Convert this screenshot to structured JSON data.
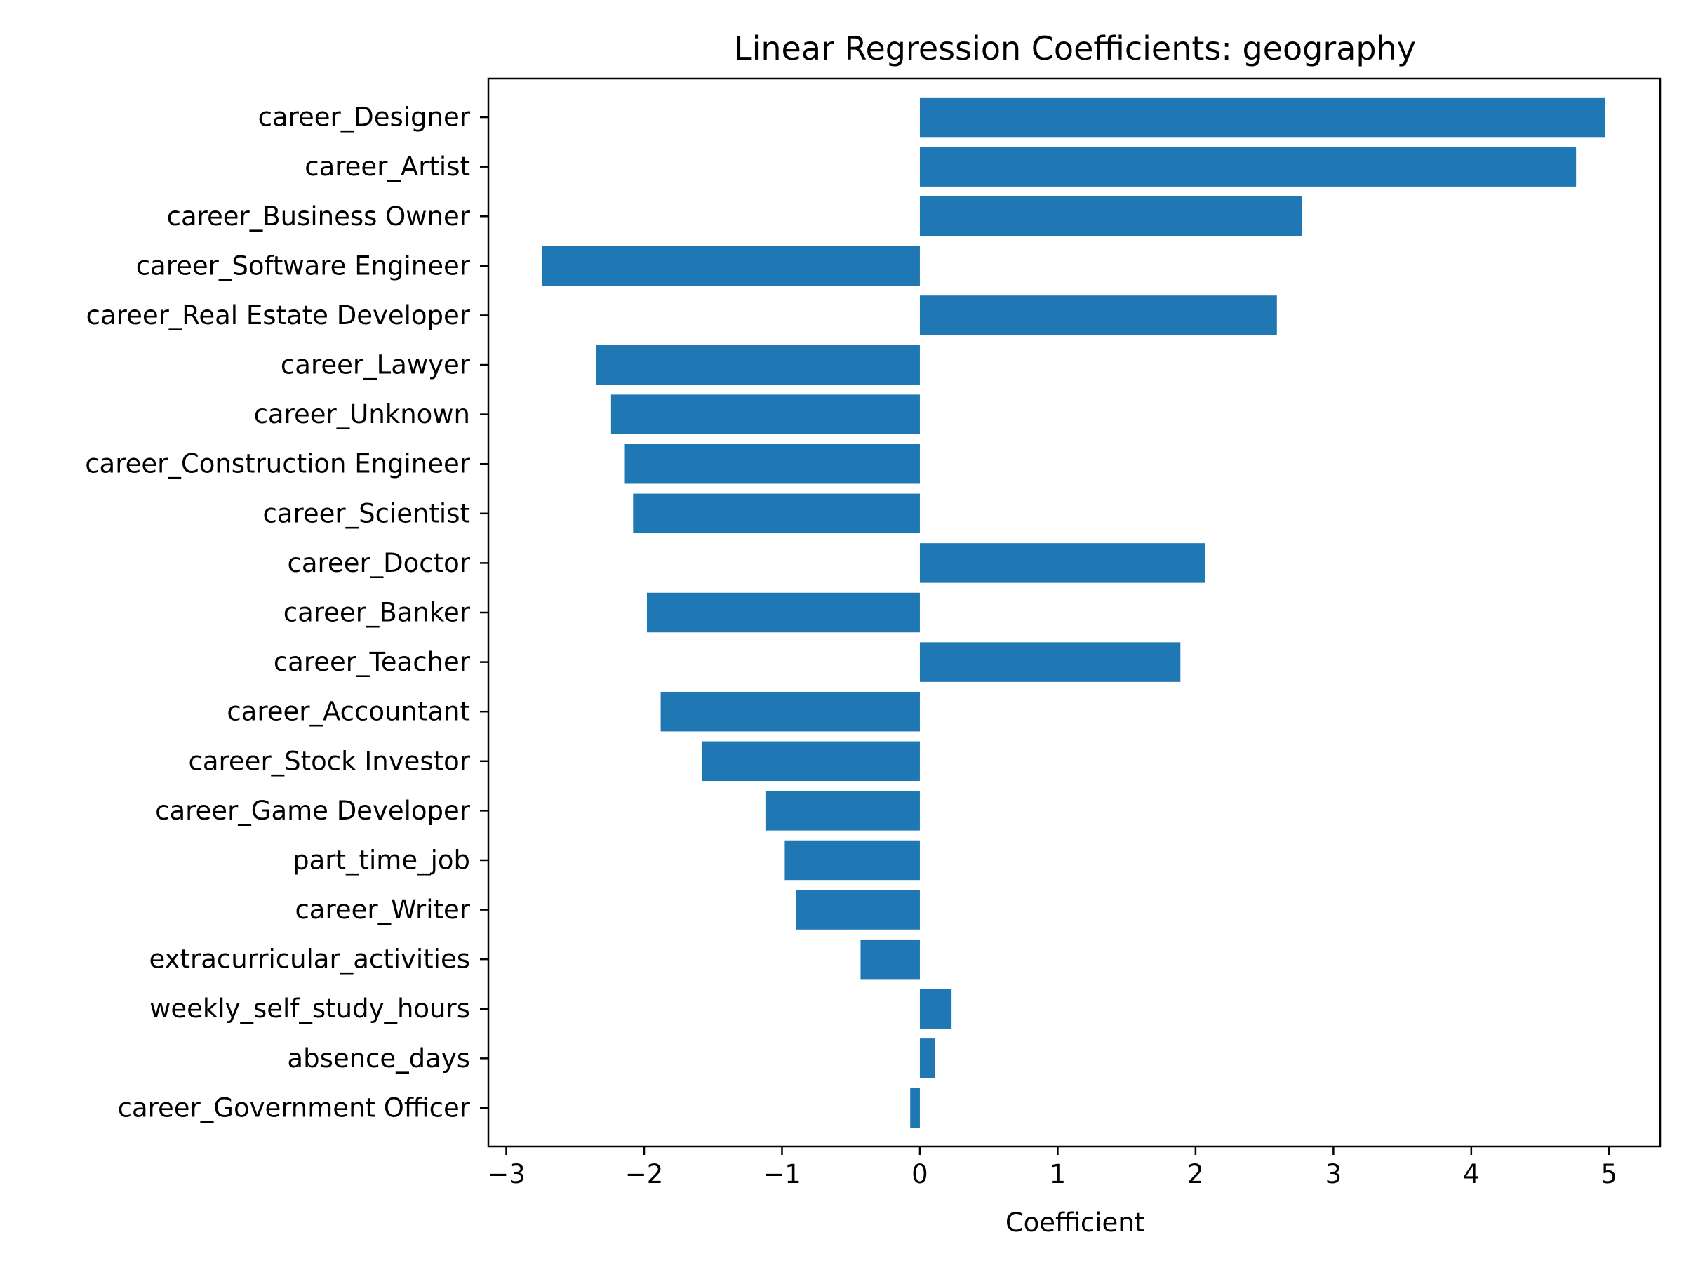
{
  "chart_data": {
    "type": "bar",
    "orientation": "horizontal",
    "title": "Linear Regression Coefficients: geography",
    "xlabel": "Coefficient",
    "ylabel": "",
    "xlim": [
      -3.13,
      5.37
    ],
    "xticks": [
      -3,
      -2,
      -1,
      0,
      1,
      2,
      3,
      4,
      5
    ],
    "xtick_labels": [
      "−3",
      "−2",
      "−1",
      "0",
      "1",
      "2",
      "3",
      "4",
      "5"
    ],
    "grid": false,
    "bar_color": "#1f77b4",
    "categories": [
      "career_Designer",
      "career_Artist",
      "career_Business Owner",
      "career_Software Engineer",
      "career_Real Estate Developer",
      "career_Lawyer",
      "career_Unknown",
      "career_Construction Engineer",
      "career_Scientist",
      "career_Doctor",
      "career_Banker",
      "career_Teacher",
      "career_Accountant",
      "career_Stock Investor",
      "career_Game Developer",
      "part_time_job",
      "career_Writer",
      "extracurricular_activities",
      "weekly_self_study_hours",
      "absence_days",
      "career_Government Officer"
    ],
    "values": [
      4.97,
      4.76,
      2.77,
      -2.74,
      2.59,
      -2.35,
      -2.24,
      -2.14,
      -2.08,
      2.07,
      -1.98,
      1.89,
      -1.88,
      -1.58,
      -1.12,
      -0.98,
      -0.9,
      -0.43,
      0.23,
      0.11,
      -0.07
    ]
  }
}
